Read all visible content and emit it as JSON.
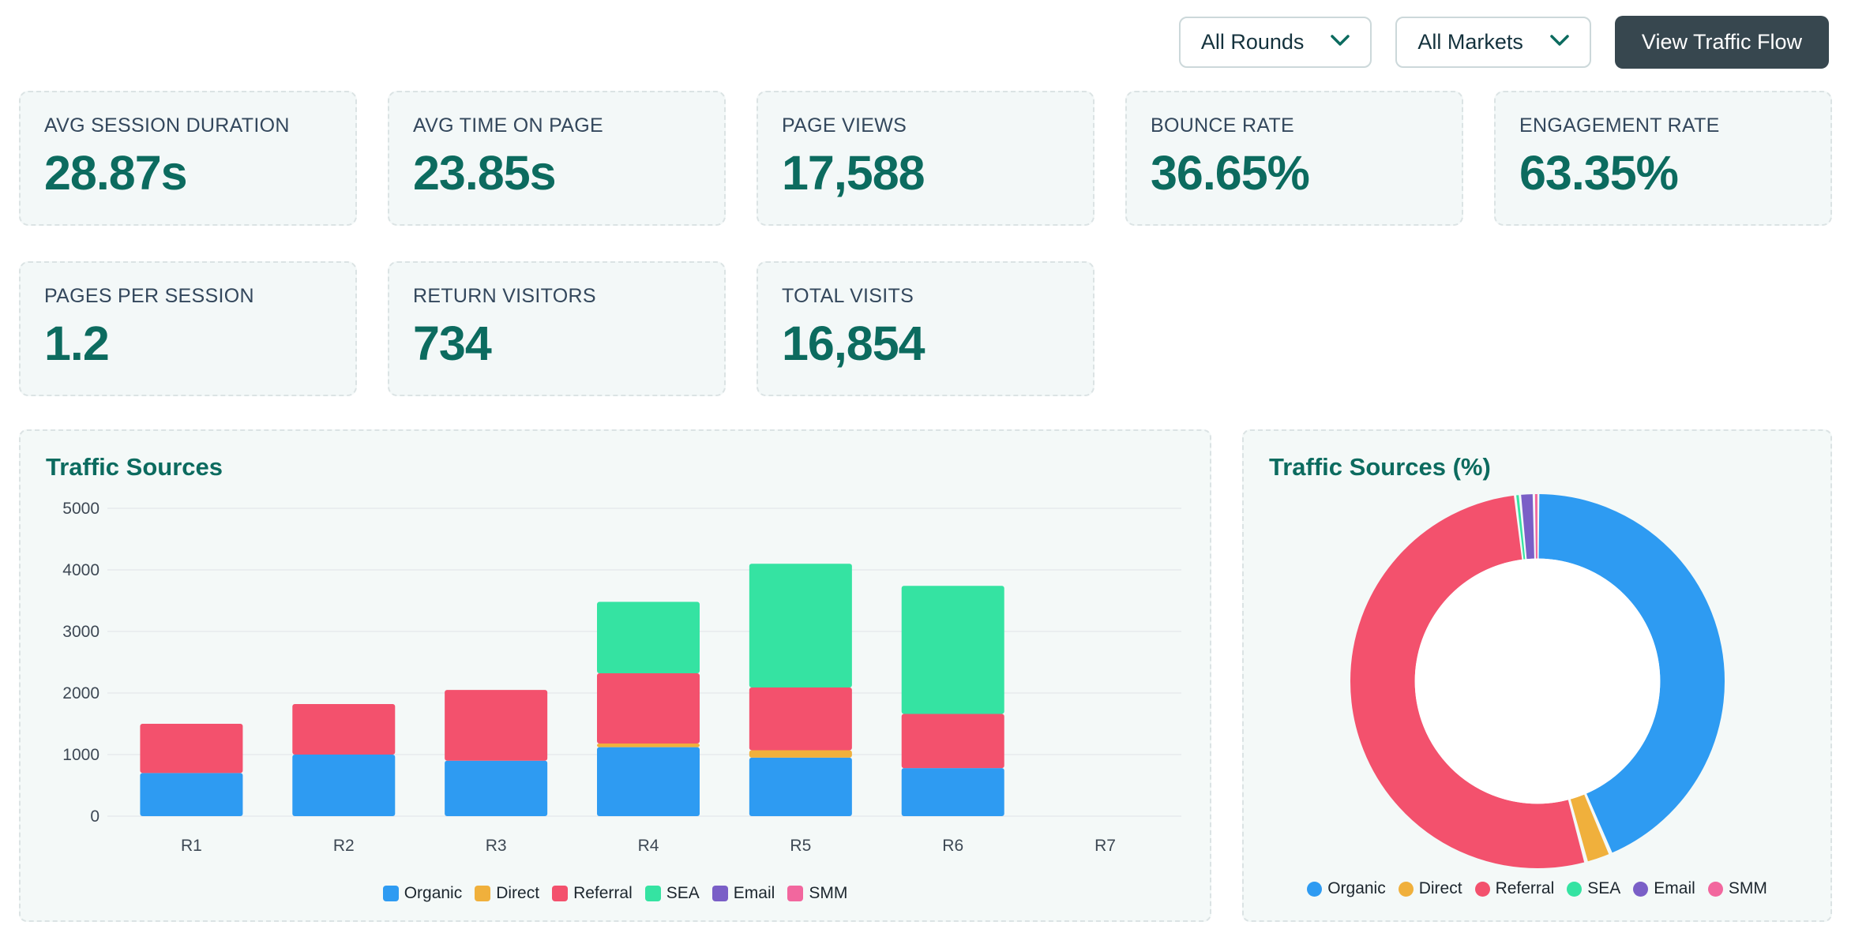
{
  "controls": {
    "rounds_filter": {
      "value": "All Rounds"
    },
    "markets_filter": {
      "value": "All Markets"
    },
    "traffic_flow_button": "View Traffic Flow"
  },
  "kpis": [
    {
      "label": "AVG SESSION DURATION",
      "value": "28.87s"
    },
    {
      "label": "AVG TIME ON PAGE",
      "value": "23.85s"
    },
    {
      "label": "PAGE VIEWS",
      "value": "17,588"
    },
    {
      "label": "BOUNCE RATE",
      "value": "36.65%"
    },
    {
      "label": "ENGAGEMENT RATE",
      "value": "63.35%"
    },
    {
      "label": "PAGES PER SESSION",
      "value": "1.2"
    },
    {
      "label": "RETURN VISITORS",
      "value": "734"
    },
    {
      "label": "TOTAL VISITS",
      "value": "16,854"
    }
  ],
  "colors": {
    "accent_teal": "#0c6b5f",
    "label_slate": "#33475c",
    "button_dark": "#37474f",
    "panel_bg": "#f4f9f8",
    "grid_line": "#e7eaee",
    "axis_text": "#3d4854"
  },
  "chart_data": [
    {
      "type": "bar",
      "stacked": true,
      "title": "Traffic Sources",
      "categories": [
        "R1",
        "R2",
        "R3",
        "R4",
        "R5",
        "R6",
        "R7"
      ],
      "series": [
        {
          "name": "Organic",
          "color": "#2e9bf2",
          "values": [
            700,
            1000,
            900,
            1120,
            950,
            780,
            0
          ]
        },
        {
          "name": "Direct",
          "color": "#f0b03c",
          "values": [
            0,
            0,
            0,
            60,
            120,
            0,
            0
          ]
        },
        {
          "name": "Referral",
          "color": "#f3516d",
          "values": [
            800,
            820,
            1150,
            1140,
            1020,
            880,
            0
          ]
        },
        {
          "name": "SEA",
          "color": "#35e3a2",
          "values": [
            0,
            0,
            0,
            1160,
            2010,
            2080,
            0
          ]
        },
        {
          "name": "Email",
          "color": "#7a5fc7",
          "values": [
            0,
            0,
            0,
            0,
            0,
            0,
            0
          ]
        },
        {
          "name": "SMM",
          "color": "#f2679e",
          "values": [
            0,
            0,
            0,
            0,
            0,
            0,
            0
          ]
        }
      ],
      "ylim": [
        0,
        5000
      ],
      "ytick_step": 1000,
      "grid": true,
      "legend_position": "bottom"
    },
    {
      "type": "pie",
      "donut": true,
      "title": "Traffic Sources (%)",
      "labels": [
        "Organic",
        "Direct",
        "Referral",
        "SEA",
        "Email",
        "SMM"
      ],
      "values": [
        43.6,
        2.2,
        52.3,
        0.3,
        1.3,
        0.3
      ],
      "colors": [
        "#2e9bf2",
        "#f0b03c",
        "#f3516d",
        "#35e3a2",
        "#7a5fc7",
        "#f2679e"
      ],
      "legend_position": "bottom"
    }
  ]
}
